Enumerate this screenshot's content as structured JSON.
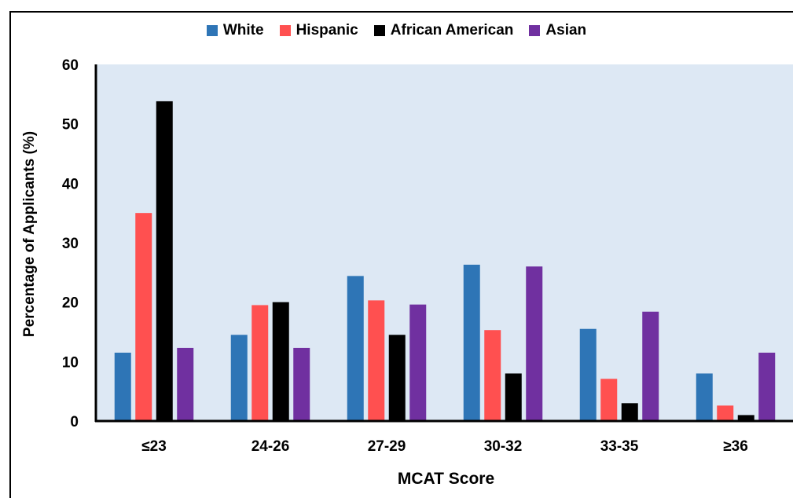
{
  "chart_data": {
    "type": "bar",
    "title": "",
    "xlabel": "MCAT Score",
    "ylabel": "Percentage of Applicants (%)",
    "ylim": [
      0,
      60
    ],
    "yticks": [
      "0",
      "10",
      "20",
      "30",
      "40",
      "50",
      "60"
    ],
    "grid": false,
    "legend_position": "top",
    "categories": [
      "≤23",
      "24-26",
      "27-29",
      "30-32",
      "33-35",
      "≥36"
    ],
    "series": [
      {
        "name": "White",
        "color": "#2e75b6",
        "values": [
          11.5,
          14.5,
          24.4,
          26.3,
          15.5,
          8.0
        ]
      },
      {
        "name": "Hispanic",
        "color": "#ff5050",
        "values": [
          35.0,
          19.5,
          20.3,
          15.3,
          7.1,
          2.6
        ]
      },
      {
        "name": "African American",
        "color": "#000000",
        "values": [
          53.8,
          20.0,
          14.5,
          8.0,
          3.0,
          1.0
        ]
      },
      {
        "name": "Asian",
        "color": "#7030a0",
        "values": [
          12.3,
          12.3,
          19.6,
          26.0,
          18.4,
          11.5
        ]
      }
    ],
    "plot_background": "#dde8f4"
  }
}
